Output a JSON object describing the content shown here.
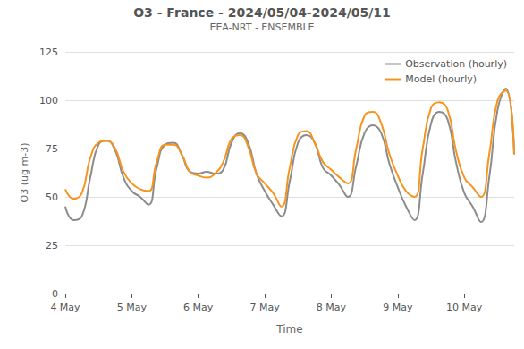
{
  "chart_data": {
    "type": "line",
    "title": "O3 - France - 2024/05/04-2024/05/11",
    "subtitle": "EEA-NRT - ENSEMBLE",
    "x_label": "Time",
    "y_label": "O3 (ug m-3)",
    "categories": [
      "4 May",
      null,
      null,
      null,
      null,
      null,
      null,
      null,
      "5 May",
      null,
      null,
      null,
      null,
      null,
      null,
      null,
      "6 May",
      null,
      null,
      null,
      null,
      null,
      null,
      null,
      "7 May",
      null,
      null,
      null,
      null,
      null,
      null,
      null,
      "8 May",
      null,
      null,
      null,
      null,
      null,
      null,
      null,
      "9 May",
      null,
      null,
      null,
      null,
      null,
      null,
      null,
      "10 May",
      null,
      null,
      null,
      null,
      null,
      null
    ],
    "series": [
      {
        "name": "Observation (hourly)",
        "color": "#8c8c8c",
        "line_style": "solid",
        "marker": "none",
        "values": [
          45,
          38,
          40,
          60,
          77,
          79,
          74,
          60,
          53,
          50,
          46,
          65,
          77,
          78,
          72,
          63,
          62,
          63,
          62,
          64,
          78,
          83,
          78,
          62,
          53,
          46,
          40,
          58,
          78,
          82,
          78,
          65,
          61,
          56,
          50,
          66,
          83,
          87,
          83,
          67,
          55,
          45,
          38,
          62,
          88,
          94,
          90,
          68,
          52,
          45,
          37,
          60,
          95,
          106,
          72
        ]
      },
      {
        "name": "Model (hourly)",
        "color": "#f7941d",
        "line_style": "solid",
        "marker": "none",
        "values": [
          54,
          49,
          52,
          70,
          78,
          79,
          75,
          63,
          57,
          54,
          53,
          68,
          77,
          77,
          72,
          63,
          61,
          60,
          62,
          68,
          80,
          82,
          76,
          62,
          57,
          52,
          45,
          65,
          82,
          84,
          78,
          68,
          64,
          60,
          57,
          75,
          92,
          94,
          88,
          72,
          61,
          53,
          50,
          75,
          96,
          99,
          95,
          74,
          60,
          55,
          50,
          72,
          100,
          105,
          72
        ]
      }
    ],
    "ylim": [
      0,
      125
    ],
    "yticks": [
      0,
      25,
      50,
      75,
      100,
      125
    ],
    "grid": true,
    "legend": "top-right"
  }
}
